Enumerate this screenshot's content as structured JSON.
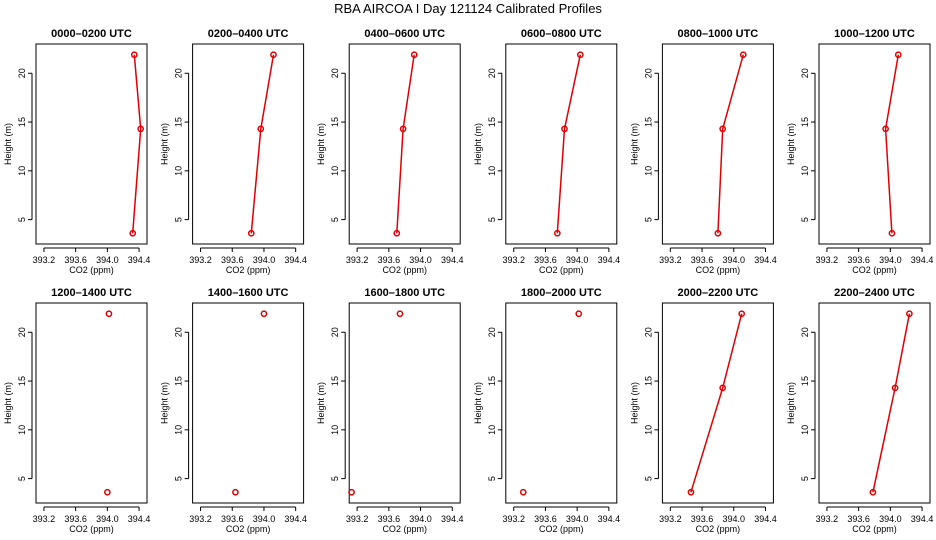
{
  "title": "RBA AIRCOA I  Day 121124  Calibrated Profiles",
  "colors": {
    "series": "#e00000",
    "axes": "#000000",
    "background": "#ffffff"
  },
  "chart_data": [
    {
      "type": "line",
      "title": "0000–0200 UTC",
      "xlabel": "CO2 (ppm)",
      "ylabel": "Height (m)",
      "xlim": [
        393.1,
        394.5
      ],
      "ylim": [
        2.5,
        23
      ],
      "xticks": [
        393.2,
        393.6,
        394.0,
        394.4
      ],
      "xtick_labels": [
        "393.2",
        "393.6",
        "394.0",
        "394.4"
      ],
      "yticks": [
        5,
        10,
        15,
        20
      ],
      "ytick_labels": [
        "5",
        "10",
        "15",
        "20"
      ],
      "points": [
        {
          "x": 394.32,
          "y": 3.6
        },
        {
          "x": 394.42,
          "y": 14.3
        },
        {
          "x": 394.34,
          "y": 21.9
        }
      ]
    },
    {
      "type": "line",
      "title": "0200–0400 UTC",
      "xlabel": "CO2 (ppm)",
      "ylabel": "Height (m)",
      "xlim": [
        393.1,
        394.5
      ],
      "ylim": [
        2.5,
        23
      ],
      "xticks": [
        393.2,
        393.6,
        394.0,
        394.4
      ],
      "xtick_labels": [
        "393.2",
        "393.6",
        "394.0",
        "394.4"
      ],
      "yticks": [
        5,
        10,
        15,
        20
      ],
      "ytick_labels": [
        "5",
        "10",
        "15",
        "20"
      ],
      "points": [
        {
          "x": 393.84,
          "y": 3.6
        },
        {
          "x": 393.96,
          "y": 14.3
        },
        {
          "x": 394.12,
          "y": 21.9
        }
      ]
    },
    {
      "type": "line",
      "title": "0400–0600 UTC",
      "xlabel": "CO2 (ppm)",
      "ylabel": "Height (m)",
      "xlim": [
        393.1,
        394.5
      ],
      "ylim": [
        2.5,
        23
      ],
      "xticks": [
        393.2,
        393.6,
        394.0,
        394.4
      ],
      "xtick_labels": [
        "393.2",
        "393.6",
        "394.0",
        "394.4"
      ],
      "yticks": [
        5,
        10,
        15,
        20
      ],
      "ytick_labels": [
        "5",
        "10",
        "15",
        "20"
      ],
      "points": [
        {
          "x": 393.7,
          "y": 3.6
        },
        {
          "x": 393.78,
          "y": 14.3
        },
        {
          "x": 393.92,
          "y": 21.9
        }
      ]
    },
    {
      "type": "line",
      "title": "0600–0800 UTC",
      "xlabel": "CO2 (ppm)",
      "ylabel": "Height (m)",
      "xlim": [
        393.1,
        394.5
      ],
      "ylim": [
        2.5,
        23
      ],
      "xticks": [
        393.2,
        393.6,
        394.0,
        394.4
      ],
      "xtick_labels": [
        "393.2",
        "393.6",
        "394.0",
        "394.4"
      ],
      "yticks": [
        5,
        10,
        15,
        20
      ],
      "ytick_labels": [
        "5",
        "10",
        "15",
        "20"
      ],
      "points": [
        {
          "x": 393.75,
          "y": 3.6
        },
        {
          "x": 393.84,
          "y": 14.3
        },
        {
          "x": 394.04,
          "y": 21.9
        }
      ]
    },
    {
      "type": "line",
      "title": "0800–1000 UTC",
      "xlabel": "CO2 (ppm)",
      "ylabel": "Height (m)",
      "xlim": [
        393.1,
        394.5
      ],
      "ylim": [
        2.5,
        23
      ],
      "xticks": [
        393.2,
        393.6,
        394.0,
        394.4
      ],
      "xtick_labels": [
        "393.2",
        "393.6",
        "394.0",
        "394.4"
      ],
      "yticks": [
        5,
        10,
        15,
        20
      ],
      "ytick_labels": [
        "5",
        "10",
        "15",
        "20"
      ],
      "points": [
        {
          "x": 393.8,
          "y": 3.6
        },
        {
          "x": 393.86,
          "y": 14.3
        },
        {
          "x": 394.12,
          "y": 21.9
        }
      ]
    },
    {
      "type": "line",
      "title": "1000–1200 UTC",
      "xlabel": "CO2 (ppm)",
      "ylabel": "Height (m)",
      "xlim": [
        393.1,
        394.5
      ],
      "ylim": [
        2.5,
        23
      ],
      "xticks": [
        393.2,
        393.6,
        394.0,
        394.4
      ],
      "xtick_labels": [
        "393.2",
        "393.6",
        "394.0",
        "394.4"
      ],
      "yticks": [
        5,
        10,
        15,
        20
      ],
      "ytick_labels": [
        "5",
        "10",
        "15",
        "20"
      ],
      "points": [
        {
          "x": 394.02,
          "y": 3.6
        },
        {
          "x": 393.94,
          "y": 14.3
        },
        {
          "x": 394.1,
          "y": 21.9
        }
      ]
    },
    {
      "type": "scatter",
      "title": "1200–1400 UTC",
      "xlabel": "CO2 (ppm)",
      "ylabel": "Height (m)",
      "xlim": [
        393.1,
        394.5
      ],
      "ylim": [
        2.5,
        23
      ],
      "xticks": [
        393.2,
        393.6,
        394.0,
        394.4
      ],
      "xtick_labels": [
        "393.2",
        "393.6",
        "394.0",
        "394.4"
      ],
      "yticks": [
        5,
        10,
        15,
        20
      ],
      "ytick_labels": [
        "5",
        "10",
        "15",
        "20"
      ],
      "points": [
        {
          "x": 394.0,
          "y": 3.6
        },
        {
          "x": 394.02,
          "y": 21.9
        }
      ]
    },
    {
      "type": "scatter",
      "title": "1400–1600 UTC",
      "xlabel": "CO2 (ppm)",
      "ylabel": "Height (m)",
      "xlim": [
        393.1,
        394.5
      ],
      "ylim": [
        2.5,
        23
      ],
      "xticks": [
        393.2,
        393.6,
        394.0,
        394.4
      ],
      "xtick_labels": [
        "393.2",
        "393.6",
        "394.0",
        "394.4"
      ],
      "yticks": [
        5,
        10,
        15,
        20
      ],
      "ytick_labels": [
        "5",
        "10",
        "15",
        "20"
      ],
      "points": [
        {
          "x": 393.64,
          "y": 3.6
        },
        {
          "x": 394.0,
          "y": 21.9
        }
      ]
    },
    {
      "type": "scatter",
      "title": "1600–1800 UTC",
      "xlabel": "CO2 (ppm)",
      "ylabel": "Height (m)",
      "xlim": [
        393.1,
        394.5
      ],
      "ylim": [
        2.5,
        23
      ],
      "xticks": [
        393.2,
        393.6,
        394.0,
        394.4
      ],
      "xtick_labels": [
        "393.2",
        "393.6",
        "394.0",
        "394.4"
      ],
      "yticks": [
        5,
        10,
        15,
        20
      ],
      "ytick_labels": [
        "5",
        "10",
        "15",
        "20"
      ],
      "points": [
        {
          "x": 393.13,
          "y": 3.6
        },
        {
          "x": 393.74,
          "y": 21.9
        }
      ]
    },
    {
      "type": "scatter",
      "title": "1800–2000 UTC",
      "xlabel": "CO2 (ppm)",
      "ylabel": "Height (m)",
      "xlim": [
        393.1,
        394.5
      ],
      "ylim": [
        2.5,
        23
      ],
      "xticks": [
        393.2,
        393.6,
        394.0,
        394.4
      ],
      "xtick_labels": [
        "393.2",
        "393.6",
        "394.0",
        "394.4"
      ],
      "yticks": [
        5,
        10,
        15,
        20
      ],
      "ytick_labels": [
        "5",
        "10",
        "15",
        "20"
      ],
      "points": [
        {
          "x": 393.32,
          "y": 3.6
        },
        {
          "x": 394.02,
          "y": 21.9
        }
      ]
    },
    {
      "type": "line",
      "title": "2000–2200 UTC",
      "xlabel": "CO2 (ppm)",
      "ylabel": "Height (m)",
      "xlim": [
        393.1,
        394.5
      ],
      "ylim": [
        2.5,
        23
      ],
      "xticks": [
        393.2,
        393.6,
        394.0,
        394.4
      ],
      "xtick_labels": [
        "393.2",
        "393.6",
        "394.0",
        "394.4"
      ],
      "yticks": [
        5,
        10,
        15,
        20
      ],
      "ytick_labels": [
        "5",
        "10",
        "15",
        "20"
      ],
      "points": [
        {
          "x": 393.46,
          "y": 3.6
        },
        {
          "x": 393.86,
          "y": 14.3
        },
        {
          "x": 394.1,
          "y": 21.9
        }
      ]
    },
    {
      "type": "line",
      "title": "2200–2400 UTC",
      "xlabel": "CO2 (ppm)",
      "ylabel": "Height (m)",
      "xlim": [
        393.1,
        394.5
      ],
      "ylim": [
        2.5,
        23
      ],
      "xticks": [
        393.2,
        393.6,
        394.0,
        394.4
      ],
      "xtick_labels": [
        "393.2",
        "393.6",
        "394.0",
        "394.4"
      ],
      "yticks": [
        5,
        10,
        15,
        20
      ],
      "ytick_labels": [
        "5",
        "10",
        "15",
        "20"
      ],
      "points": [
        {
          "x": 393.78,
          "y": 3.6
        },
        {
          "x": 394.06,
          "y": 14.3
        },
        {
          "x": 394.24,
          "y": 21.9
        }
      ]
    }
  ]
}
